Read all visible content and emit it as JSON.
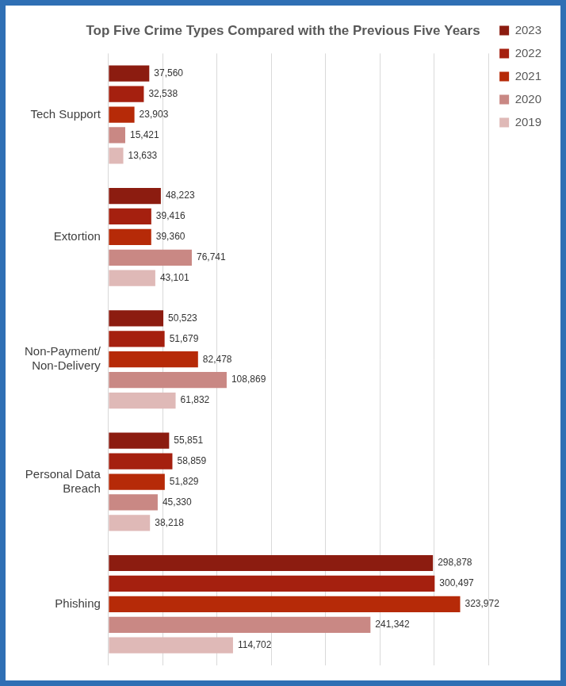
{
  "chart_data": {
    "type": "bar",
    "title": "Top Five Crime Types Compared with the Previous Five Years",
    "orientation": "horizontal",
    "categories": [
      "Tech Support",
      "Extortion",
      [
        "Non-Payment/",
        "Non-Delivery"
      ],
      [
        "Personal Data",
        "Breach"
      ],
      "Phishing"
    ],
    "series": [
      {
        "name": "2023",
        "color": "#8c1c10",
        "values": [
          37560,
          48223,
          50523,
          55851,
          298878
        ],
        "value_labels": [
          "37,560",
          "48,223",
          "50,523",
          "55,851",
          "298,878"
        ]
      },
      {
        "name": "2022",
        "color": "#a5200f",
        "values": [
          32538,
          39416,
          51679,
          58859,
          300497
        ],
        "value_labels": [
          "32,538",
          "39,416",
          "51,679",
          "58,859",
          "300,497"
        ]
      },
      {
        "name": "2021",
        "color": "#b62a08",
        "values": [
          23903,
          39360,
          82478,
          51829,
          323972
        ],
        "value_labels": [
          "23,903",
          "39,360",
          "82,478",
          "51,829",
          "323,972"
        ]
      },
      {
        "name": "2020",
        "color": "#c98884",
        "values": [
          15421,
          76741,
          108869,
          45330,
          241342
        ],
        "value_labels": [
          "15,421",
          "76,741",
          "108,869",
          "45,330",
          "241,342"
        ]
      },
      {
        "name": "2019",
        "color": "#dfb9b7",
        "values": [
          13633,
          43101,
          61832,
          38218,
          114702
        ],
        "value_labels": [
          "13,633",
          "43,101",
          "61,832",
          "38,218",
          "114,702"
        ]
      }
    ],
    "xlim": [
      0,
      350000
    ],
    "xticks": [
      0,
      50000,
      100000,
      150000,
      200000,
      250000,
      300000,
      350000
    ],
    "grid": true,
    "legend": "upper right",
    "data_labels": true,
    "tick_labels": "y"
  }
}
